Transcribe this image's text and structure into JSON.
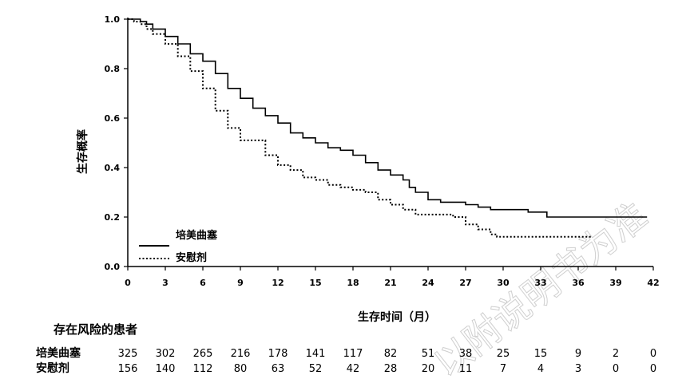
{
  "chart_data": {
    "type": "line",
    "title": "",
    "xlabel": "生存时间（月）",
    "ylabel": "生存概率",
    "xlim": [
      0,
      42
    ],
    "ylim": [
      0,
      1.0
    ],
    "xticks": [
      0,
      3,
      6,
      9,
      12,
      15,
      18,
      21,
      24,
      27,
      30,
      33,
      36,
      39,
      42
    ],
    "yticks": [
      0.0,
      0.2,
      0.4,
      0.6,
      0.8,
      1.0
    ],
    "ytick_labels": [
      "0.0",
      "0.2",
      "0.4",
      "0.6",
      "0.8",
      "1.0"
    ],
    "grid": false,
    "legend_position": "bottom-left",
    "series": [
      {
        "name": "培美曲塞",
        "style": "solid",
        "points": [
          [
            0,
            1.0
          ],
          [
            0.5,
            1.0
          ],
          [
            1,
            0.99
          ],
          [
            1.5,
            0.98
          ],
          [
            2,
            0.96
          ],
          [
            3,
            0.93
          ],
          [
            4,
            0.9
          ],
          [
            5,
            0.86
          ],
          [
            6,
            0.83
          ],
          [
            7,
            0.78
          ],
          [
            8,
            0.72
          ],
          [
            9,
            0.68
          ],
          [
            10,
            0.64
          ],
          [
            11,
            0.61
          ],
          [
            12,
            0.58
          ],
          [
            13,
            0.54
          ],
          [
            14,
            0.52
          ],
          [
            15,
            0.5
          ],
          [
            16,
            0.48
          ],
          [
            17,
            0.47
          ],
          [
            18,
            0.45
          ],
          [
            19,
            0.42
          ],
          [
            20,
            0.39
          ],
          [
            21,
            0.37
          ],
          [
            22,
            0.35
          ],
          [
            22.5,
            0.32
          ],
          [
            23,
            0.3
          ],
          [
            24,
            0.27
          ],
          [
            25,
            0.26
          ],
          [
            26,
            0.26
          ],
          [
            27,
            0.25
          ],
          [
            28,
            0.24
          ],
          [
            29,
            0.23
          ],
          [
            30,
            0.23
          ],
          [
            32,
            0.22
          ],
          [
            33,
            0.22
          ],
          [
            33.5,
            0.2
          ],
          [
            36,
            0.2
          ],
          [
            39,
            0.2
          ],
          [
            41.5,
            0.2
          ]
        ]
      },
      {
        "name": "安慰剂",
        "style": "dotted",
        "points": [
          [
            0,
            1.0
          ],
          [
            0.5,
            0.99
          ],
          [
            1,
            0.98
          ],
          [
            1.5,
            0.96
          ],
          [
            2,
            0.94
          ],
          [
            3,
            0.9
          ],
          [
            4,
            0.85
          ],
          [
            5,
            0.79
          ],
          [
            6,
            0.72
          ],
          [
            7,
            0.63
          ],
          [
            8,
            0.56
          ],
          [
            9,
            0.51
          ],
          [
            10,
            0.51
          ],
          [
            11,
            0.45
          ],
          [
            12,
            0.41
          ],
          [
            13,
            0.39
          ],
          [
            14,
            0.36
          ],
          [
            15,
            0.35
          ],
          [
            16,
            0.33
          ],
          [
            17,
            0.32
          ],
          [
            18,
            0.31
          ],
          [
            19,
            0.3
          ],
          [
            20,
            0.27
          ],
          [
            21,
            0.25
          ],
          [
            22,
            0.23
          ],
          [
            23,
            0.21
          ],
          [
            24,
            0.21
          ],
          [
            25,
            0.21
          ],
          [
            26,
            0.2
          ],
          [
            27,
            0.17
          ],
          [
            28,
            0.15
          ],
          [
            29,
            0.13
          ],
          [
            29.5,
            0.12
          ],
          [
            30,
            0.12
          ],
          [
            33,
            0.12
          ],
          [
            36,
            0.12
          ],
          [
            37,
            0.12
          ]
        ]
      }
    ]
  },
  "legend": {
    "entries": [
      {
        "label": "培美曲塞",
        "style": "solid"
      },
      {
        "label": "安慰剂",
        "style": "dotted"
      }
    ]
  },
  "risk_table": {
    "title": "存在风险的患者",
    "rows": [
      {
        "name": "培美曲塞",
        "values": [
          "325",
          "302",
          "265",
          "216",
          "178",
          "141",
          "117",
          "82",
          "51",
          "38",
          "25",
          "15",
          "9",
          "2",
          "0"
        ]
      },
      {
        "name": "安慰剂",
        "values": [
          "156",
          "140",
          "112",
          "80",
          "63",
          "52",
          "42",
          "28",
          "20",
          "11",
          "7",
          "4",
          "3",
          "0",
          "0"
        ]
      }
    ]
  },
  "watermark": "以附说明书为准"
}
